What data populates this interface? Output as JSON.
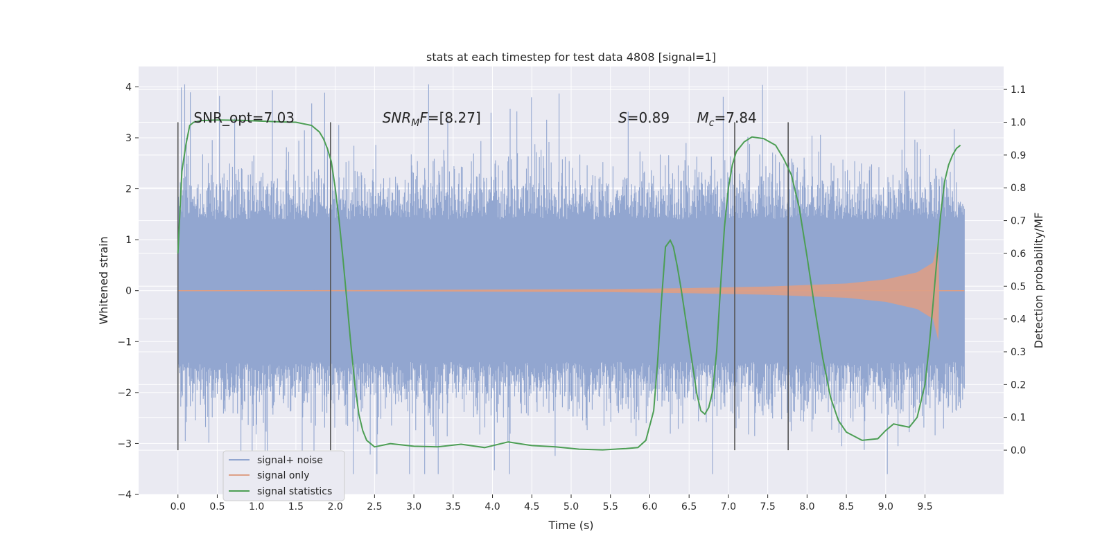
{
  "chart_data": {
    "type": "line",
    "title": "stats at each timestep for test data 4808 [signal=1]",
    "xlabel": "Time (s)",
    "ylabel": "Whitened strain",
    "ylabel_right": "Detection probability/MF",
    "xlim": [
      -0.5,
      10.5
    ],
    "ylim": [
      -4.0,
      4.4
    ],
    "ylim_right": [
      -0.135,
      1.17
    ],
    "xticks": [
      0.0,
      0.5,
      1.0,
      1.5,
      2.0,
      2.5,
      3.0,
      3.5,
      4.0,
      4.5,
      5.0,
      5.5,
      6.0,
      6.5,
      7.0,
      7.5,
      8.0,
      8.5,
      9.0,
      9.5
    ],
    "xtick_labels": [
      "0.0",
      "0.5",
      "1.0",
      "1.5",
      "2.0",
      "2.5",
      "3.0",
      "3.5",
      "4.0",
      "4.5",
      "5.0",
      "5.5",
      "6.0",
      "6.5",
      "7.0",
      "7.5",
      "8.0",
      "8.5",
      "9.0",
      "9.5"
    ],
    "yticks": [
      -4,
      -3,
      -2,
      -1,
      0,
      1,
      2,
      3,
      4
    ],
    "ytick_labels": [
      "−4",
      "−3",
      "−2",
      "−1",
      "0",
      "1",
      "2",
      "3",
      "4"
    ],
    "yticks_right": [
      0.0,
      0.1,
      0.2,
      0.3,
      0.4,
      0.5,
      0.6,
      0.7,
      0.8,
      0.9,
      1.0,
      1.1
    ],
    "ytick_right_labels": [
      "0.0",
      "0.1",
      "0.2",
      "0.3",
      "0.4",
      "0.5",
      "0.6",
      "0.7",
      "0.8",
      "0.9",
      "1.0",
      "1.1"
    ],
    "grid": true,
    "legend_position": "lower-left",
    "series": [
      {
        "name": "signal+ noise",
        "color": "#92a6d0",
        "kind": "noise",
        "x_range": [
          0.0,
          10.0
        ],
        "core_amplitude": 1.4,
        "peak_amplitude": 4.05
      },
      {
        "name": "signal only",
        "color": "#dd9f86",
        "kind": "chirp",
        "envelope": [
          [
            0.0,
            0.0
          ],
          [
            5.5,
            0.03
          ],
          [
            6.5,
            0.05
          ],
          [
            7.5,
            0.08
          ],
          [
            8.5,
            0.14
          ],
          [
            9.0,
            0.22
          ],
          [
            9.4,
            0.36
          ],
          [
            9.6,
            0.55
          ],
          [
            9.67,
            0.98
          ],
          [
            9.68,
            0.0
          ],
          [
            10.0,
            0.0
          ]
        ]
      },
      {
        "name": "signal statistics",
        "color": "#4c9e54",
        "axis": "right",
        "x": [
          0.0,
          0.05,
          0.1,
          0.15,
          0.2,
          0.3,
          0.5,
          0.8,
          1.0,
          1.3,
          1.5,
          1.7,
          1.8,
          1.85,
          1.9,
          1.95,
          2.0,
          2.05,
          2.1,
          2.15,
          2.2,
          2.25,
          2.3,
          2.35,
          2.4,
          2.5,
          2.7,
          3.0,
          3.3,
          3.6,
          3.9,
          4.2,
          4.5,
          4.8,
          5.1,
          5.4,
          5.7,
          5.85,
          5.95,
          6.05,
          6.1,
          6.15,
          6.2,
          6.26,
          6.3,
          6.35,
          6.4,
          6.5,
          6.6,
          6.65,
          6.7,
          6.75,
          6.8,
          6.85,
          6.9,
          6.95,
          7.0,
          7.05,
          7.1,
          7.2,
          7.3,
          7.45,
          7.6,
          7.7,
          7.8,
          7.9,
          8.0,
          8.1,
          8.2,
          8.3,
          8.4,
          8.5,
          8.7,
          8.9,
          9.0,
          9.1,
          9.2,
          9.3,
          9.4,
          9.5,
          9.55,
          9.6,
          9.65,
          9.7,
          9.75,
          9.8,
          9.85,
          9.9,
          9.95
        ],
        "y": [
          0.6,
          0.85,
          0.93,
          0.99,
          1.0,
          1.005,
          1.007,
          1.006,
          1.004,
          1.001,
          1.0,
          0.99,
          0.97,
          0.95,
          0.92,
          0.88,
          0.8,
          0.7,
          0.58,
          0.45,
          0.32,
          0.2,
          0.11,
          0.06,
          0.03,
          0.01,
          0.02,
          0.012,
          0.01,
          0.018,
          0.008,
          0.025,
          0.014,
          0.01,
          0.003,
          0.001,
          0.005,
          0.008,
          0.03,
          0.12,
          0.27,
          0.46,
          0.62,
          0.64,
          0.62,
          0.56,
          0.49,
          0.33,
          0.17,
          0.12,
          0.11,
          0.13,
          0.18,
          0.3,
          0.5,
          0.68,
          0.8,
          0.87,
          0.91,
          0.94,
          0.955,
          0.95,
          0.93,
          0.89,
          0.84,
          0.74,
          0.59,
          0.43,
          0.28,
          0.16,
          0.09,
          0.055,
          0.03,
          0.035,
          0.06,
          0.08,
          0.075,
          0.07,
          0.1,
          0.2,
          0.31,
          0.44,
          0.58,
          0.72,
          0.82,
          0.87,
          0.9,
          0.92,
          0.93
        ]
      }
    ],
    "vlines": [
      0.0,
      1.94,
      7.08,
      7.76
    ],
    "vline_range_right": [
      0.0,
      1.0
    ],
    "annotations": [
      {
        "x": 0.2,
        "y_right": 0.995,
        "kind": "plain",
        "text": "SNR_opt=7.03"
      },
      {
        "x": 2.6,
        "y_right": 0.995,
        "kind": "snr_mf",
        "italic": "SNR",
        "sub": "M",
        "after_italic": "F",
        "rest": "=[8.27]"
      },
      {
        "x": 5.6,
        "y_right": 0.995,
        "kind": "italic_var",
        "italic": "S",
        "rest": "=0.89"
      },
      {
        "x": 6.6,
        "y_right": 0.995,
        "kind": "sub_var",
        "italic": "M",
        "sub": "c",
        "rest": "=7.84"
      }
    ]
  }
}
